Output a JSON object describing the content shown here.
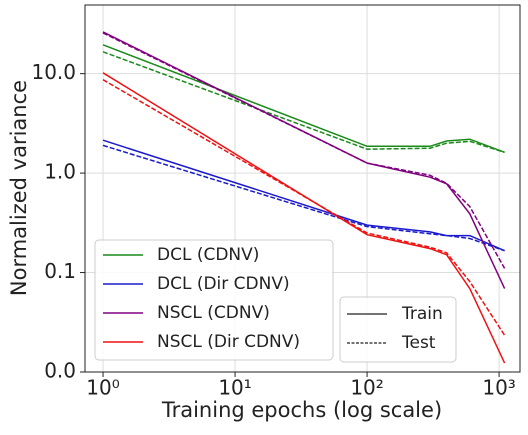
{
  "chart_data": {
    "type": "line",
    "x_label": "Training epochs (log scale)",
    "y_label": "Normalized variance",
    "x": [
      1,
      100,
      300,
      400,
      600,
      1100
    ],
    "series": [
      {
        "name": "DCL (CDNV)",
        "color": "#1a8a1a",
        "values": [
          19.5,
          1.86,
          1.86,
          2.1,
          2.19,
          1.62
        ],
        "test_values": [
          16.6,
          1.74,
          1.78,
          2.0,
          2.09,
          1.62
        ]
      },
      {
        "name": "DCL (Dir CDNV)",
        "color": "#1a1acc",
        "values": [
          2.14,
          0.3,
          0.256,
          0.235,
          0.235,
          0.166
        ],
        "test_values": [
          1.9,
          0.29,
          0.245,
          0.235,
          0.22,
          0.166
        ]
      },
      {
        "name": "NSCL (CDNV)",
        "color": "#800080",
        "values": [
          26.3,
          1.26,
          0.91,
          0.78,
          0.39,
          0.069
        ],
        "test_values": [
          25.7,
          1.26,
          0.95,
          0.79,
          0.46,
          0.11
        ]
      },
      {
        "name": "NSCL (Dir CDNV)",
        "color": "#ee1111",
        "values": [
          10.2,
          0.24,
          0.174,
          0.151,
          0.069,
          0.0123
        ],
        "test_values": [
          8.7,
          0.25,
          0.18,
          0.158,
          0.081,
          0.0234
        ]
      }
    ],
    "style_legend": [
      "Train",
      "Test"
    ],
    "xlim": [
      0.73,
      1440
    ],
    "ylim": [
      0.01,
      49
    ],
    "x_log": true,
    "y_log": true,
    "xticks": [
      {
        "value": 1,
        "label": "10⁰"
      },
      {
        "value": 10,
        "label": "10¹"
      },
      {
        "value": 100,
        "label": "10²"
      },
      {
        "value": 1000,
        "label": "10³"
      }
    ],
    "yticks": [
      {
        "value": 0.01,
        "label": "0.0"
      },
      0.1,
      {
        "value": 1,
        "label": "1.0"
      },
      {
        "value": 10,
        "label": "10.0"
      }
    ],
    "grid": true
  }
}
